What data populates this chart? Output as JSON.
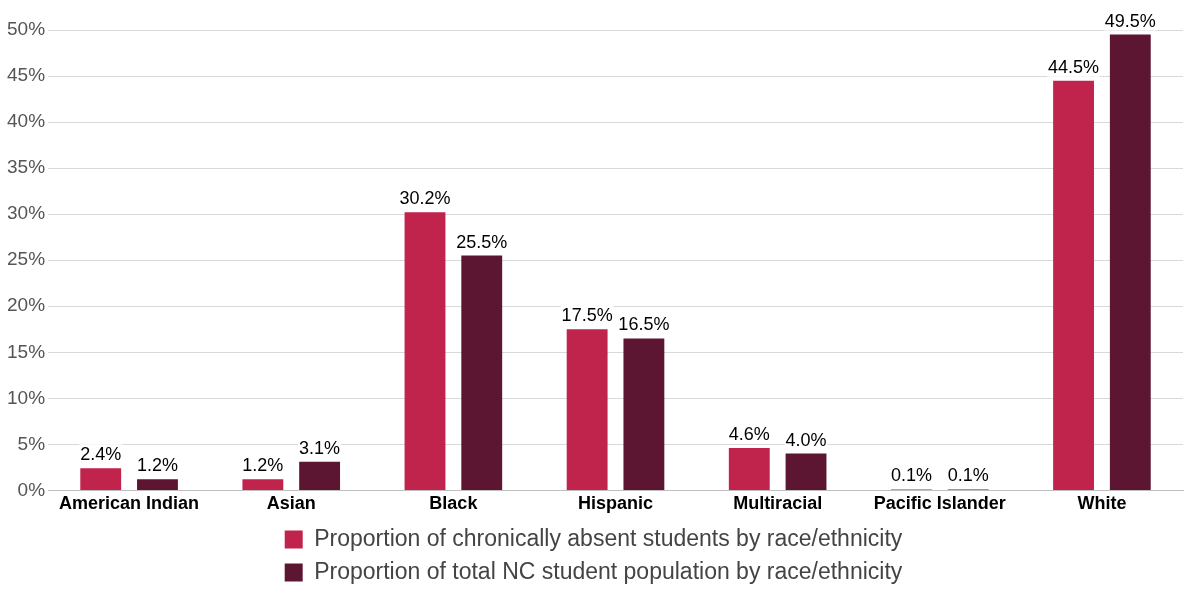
{
  "chart_data": {
    "type": "bar",
    "categories": [
      "American Indian",
      "Asian",
      "Black",
      "Hispanic",
      "Multiracial",
      "Pacific Islander",
      "White"
    ],
    "series": [
      {
        "name": "Proportion of chronically absent students by race/ethnicity",
        "color": "#c0234b",
        "values": [
          2.4,
          1.2,
          30.2,
          17.5,
          4.6,
          0.1,
          44.5
        ],
        "value_labels": [
          "2.4%",
          "1.2%",
          "30.2%",
          "17.5%",
          "4.6%",
          "0.1%",
          "44.5%"
        ]
      },
      {
        "name": "Proportion of total NC student population by race/ethnicity",
        "color": "#5c1631",
        "values": [
          1.2,
          3.1,
          25.5,
          16.5,
          4.0,
          0.1,
          49.5
        ],
        "value_labels": [
          "1.2%",
          "3.1%",
          "25.5%",
          "16.5%",
          "4.0%",
          "0.1%",
          "49.5%"
        ]
      }
    ],
    "ylim": [
      0,
      50
    ],
    "yticks": [
      {
        "value": 0,
        "label": "0%"
      },
      {
        "value": 5,
        "label": "5%"
      },
      {
        "value": 10,
        "label": "10%"
      },
      {
        "value": 15,
        "label": "15%"
      },
      {
        "value": 20,
        "label": "20%"
      },
      {
        "value": 25,
        "label": "25%"
      },
      {
        "value": 30,
        "label": "30%"
      },
      {
        "value": 35,
        "label": "35%"
      },
      {
        "value": 40,
        "label": "40%"
      },
      {
        "value": 45,
        "label": "45%"
      },
      {
        "value": 50,
        "label": "50%"
      }
    ],
    "grid": "y",
    "legend": "bottom"
  }
}
